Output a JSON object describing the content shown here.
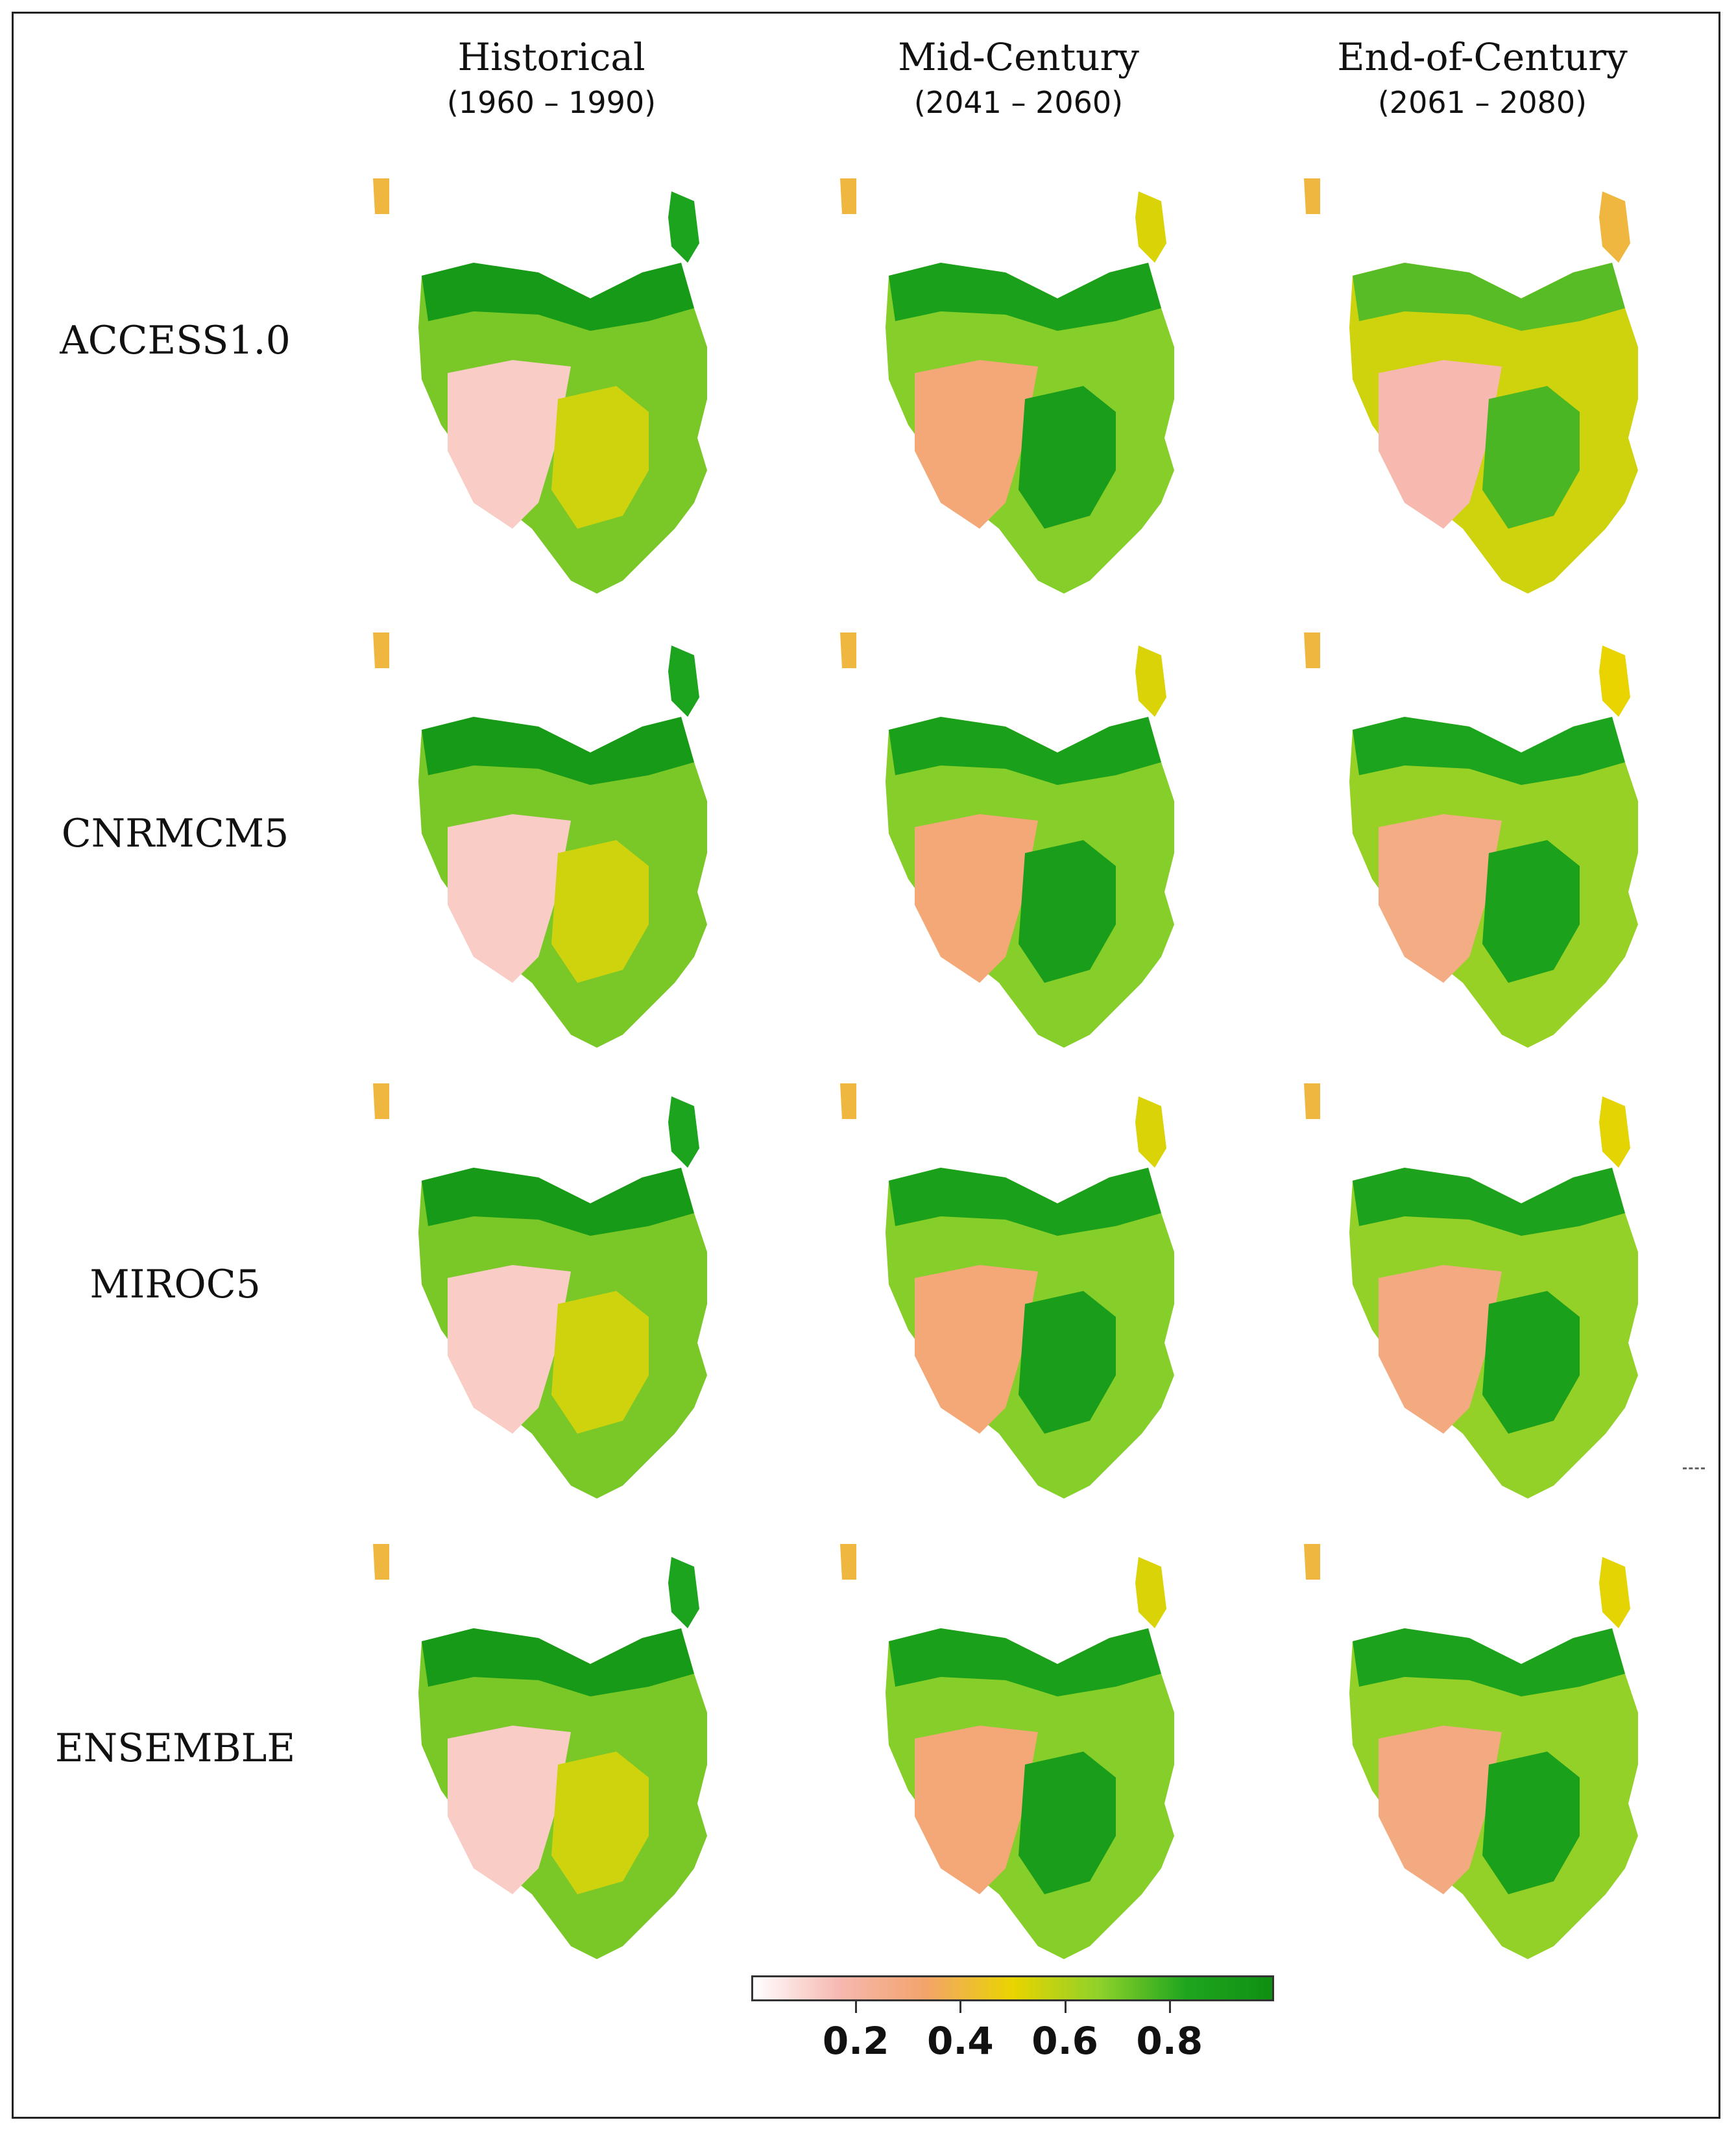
{
  "columns": [
    {
      "title": "Historical",
      "period": "(1960 – 1990)"
    },
    {
      "title": "Mid-Century",
      "period": "(2041 – 2060)"
    },
    {
      "title": "End-of-Century",
      "period": "(2061 – 2080)"
    }
  ],
  "rows": [
    {
      "label": "ACCESS1.0",
      "suitability": [
        0.55,
        0.68,
        0.55
      ]
    },
    {
      "label": "CNRMCM5",
      "suitability": [
        0.55,
        0.68,
        0.65
      ]
    },
    {
      "label": "MIROC5",
      "suitability": [
        0.55,
        0.68,
        0.66
      ]
    },
    {
      "label": "ENSEMBLE",
      "suitability": [
        0.55,
        0.68,
        0.66
      ]
    }
  ],
  "colorbar": {
    "ticks": [
      "0.2",
      "0.4",
      "0.6",
      "0.8"
    ],
    "colors": [
      "#ffffff",
      "#f6b8b0",
      "#f3a46a",
      "#e9d400",
      "#8fd12a",
      "#1fa61f",
      "#0f8f12"
    ]
  }
}
